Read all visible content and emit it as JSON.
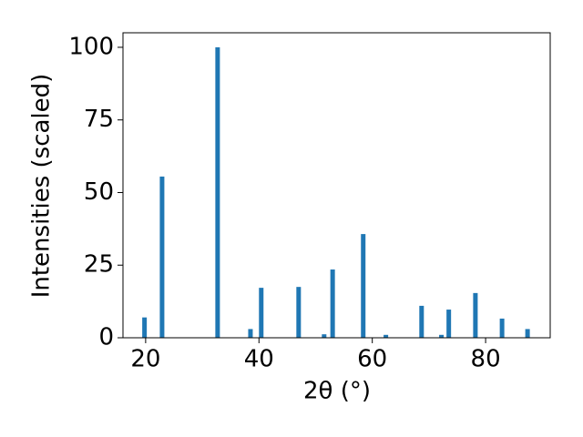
{
  "chart_data": {
    "type": "bar",
    "x_label": "2θ (°)",
    "y_label": "Intensities (scaled)",
    "x": [
      19.8,
      22.9,
      32.7,
      38.5,
      40.4,
      47.0,
      51.5,
      53.0,
      58.4,
      62.4,
      68.7,
      72.2,
      73.5,
      78.2,
      82.9,
      87.4
    ],
    "values": [
      7,
      55.5,
      100,
      3,
      17.2,
      17.5,
      1.2,
      23.5,
      35.7,
      1,
      11,
      1,
      9.7,
      15.4,
      6.6,
      3
    ],
    "color": "#1f77b4",
    "xlim": [
      16,
      91.4
    ],
    "ylim": [
      0,
      105
    ],
    "xticks": [
      20,
      40,
      60,
      80
    ],
    "yticks": [
      0,
      25,
      50,
      75,
      100
    ],
    "grid": false
  }
}
